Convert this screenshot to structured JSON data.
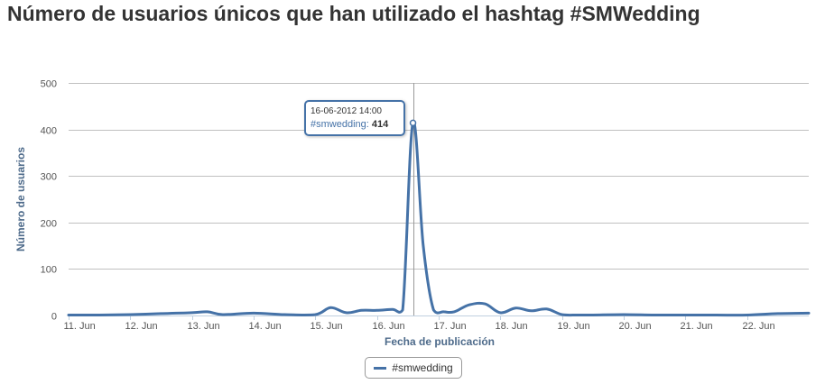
{
  "title": "Número de usuarios únicos que han utilizado el hashtag #SMWedding",
  "legend": {
    "label": "#smwedding"
  },
  "tooltip": {
    "date": "16-06-2012 14:00",
    "series": "#smwedding",
    "value": "414"
  },
  "colors": {
    "series": "#4572a7",
    "grid": "#c0c0c0",
    "axis_title": "#4d6a8a"
  },
  "chart_data": {
    "type": "line",
    "title": "Número de usuarios únicos que han utilizado el hashtag #SMWedding",
    "xlabel": "Fecha de publicación",
    "ylabel": "Número de usuarios",
    "ylim": [
      0,
      500
    ],
    "yticks": [
      0,
      100,
      200,
      300,
      400,
      500
    ],
    "xlim": [
      "2012-06-11 00:00",
      "2012-06-23 00:00"
    ],
    "xticks": [
      "11. Jun",
      "12. Jun",
      "13. Jun",
      "14. Jun",
      "15. Jun",
      "16. Jun",
      "17. Jun",
      "18. Jun",
      "19. Jun",
      "20. Jun",
      "21. Jun",
      "22. Jun"
    ],
    "grid": true,
    "legend_position": "bottom-center",
    "series": [
      {
        "name": "#smwedding",
        "x": [
          "2012-06-11 00:00",
          "2012-06-11 12:00",
          "2012-06-12 00:00",
          "2012-06-12 12:00",
          "2012-06-13 00:00",
          "2012-06-13 06:00",
          "2012-06-13 12:00",
          "2012-06-14 00:00",
          "2012-06-14 12:00",
          "2012-06-15 00:00",
          "2012-06-15 06:00",
          "2012-06-15 12:00",
          "2012-06-15 18:00",
          "2012-06-16 00:00",
          "2012-06-16 06:00",
          "2012-06-16 10:00",
          "2012-06-16 14:00",
          "2012-06-16 18:00",
          "2012-06-16 22:00",
          "2012-06-17 02:00",
          "2012-06-17 06:00",
          "2012-06-17 12:00",
          "2012-06-17 18:00",
          "2012-06-18 00:00",
          "2012-06-18 06:00",
          "2012-06-18 12:00",
          "2012-06-18 18:00",
          "2012-06-19 00:00",
          "2012-06-19 06:00",
          "2012-06-19 12:00",
          "2012-06-20 00:00",
          "2012-06-20 12:00",
          "2012-06-21 00:00",
          "2012-06-21 12:00",
          "2012-06-22 00:00",
          "2012-06-22 12:00",
          "2012-06-23 00:00"
        ],
        "values": [
          1,
          1,
          2,
          4,
          6,
          8,
          2,
          5,
          2,
          2,
          17,
          6,
          11,
          11,
          13,
          12,
          414,
          150,
          12,
          8,
          8,
          23,
          25,
          6,
          16,
          10,
          14,
          2,
          1,
          1,
          2,
          1,
          1,
          1,
          1,
          4,
          5
        ]
      }
    ]
  }
}
